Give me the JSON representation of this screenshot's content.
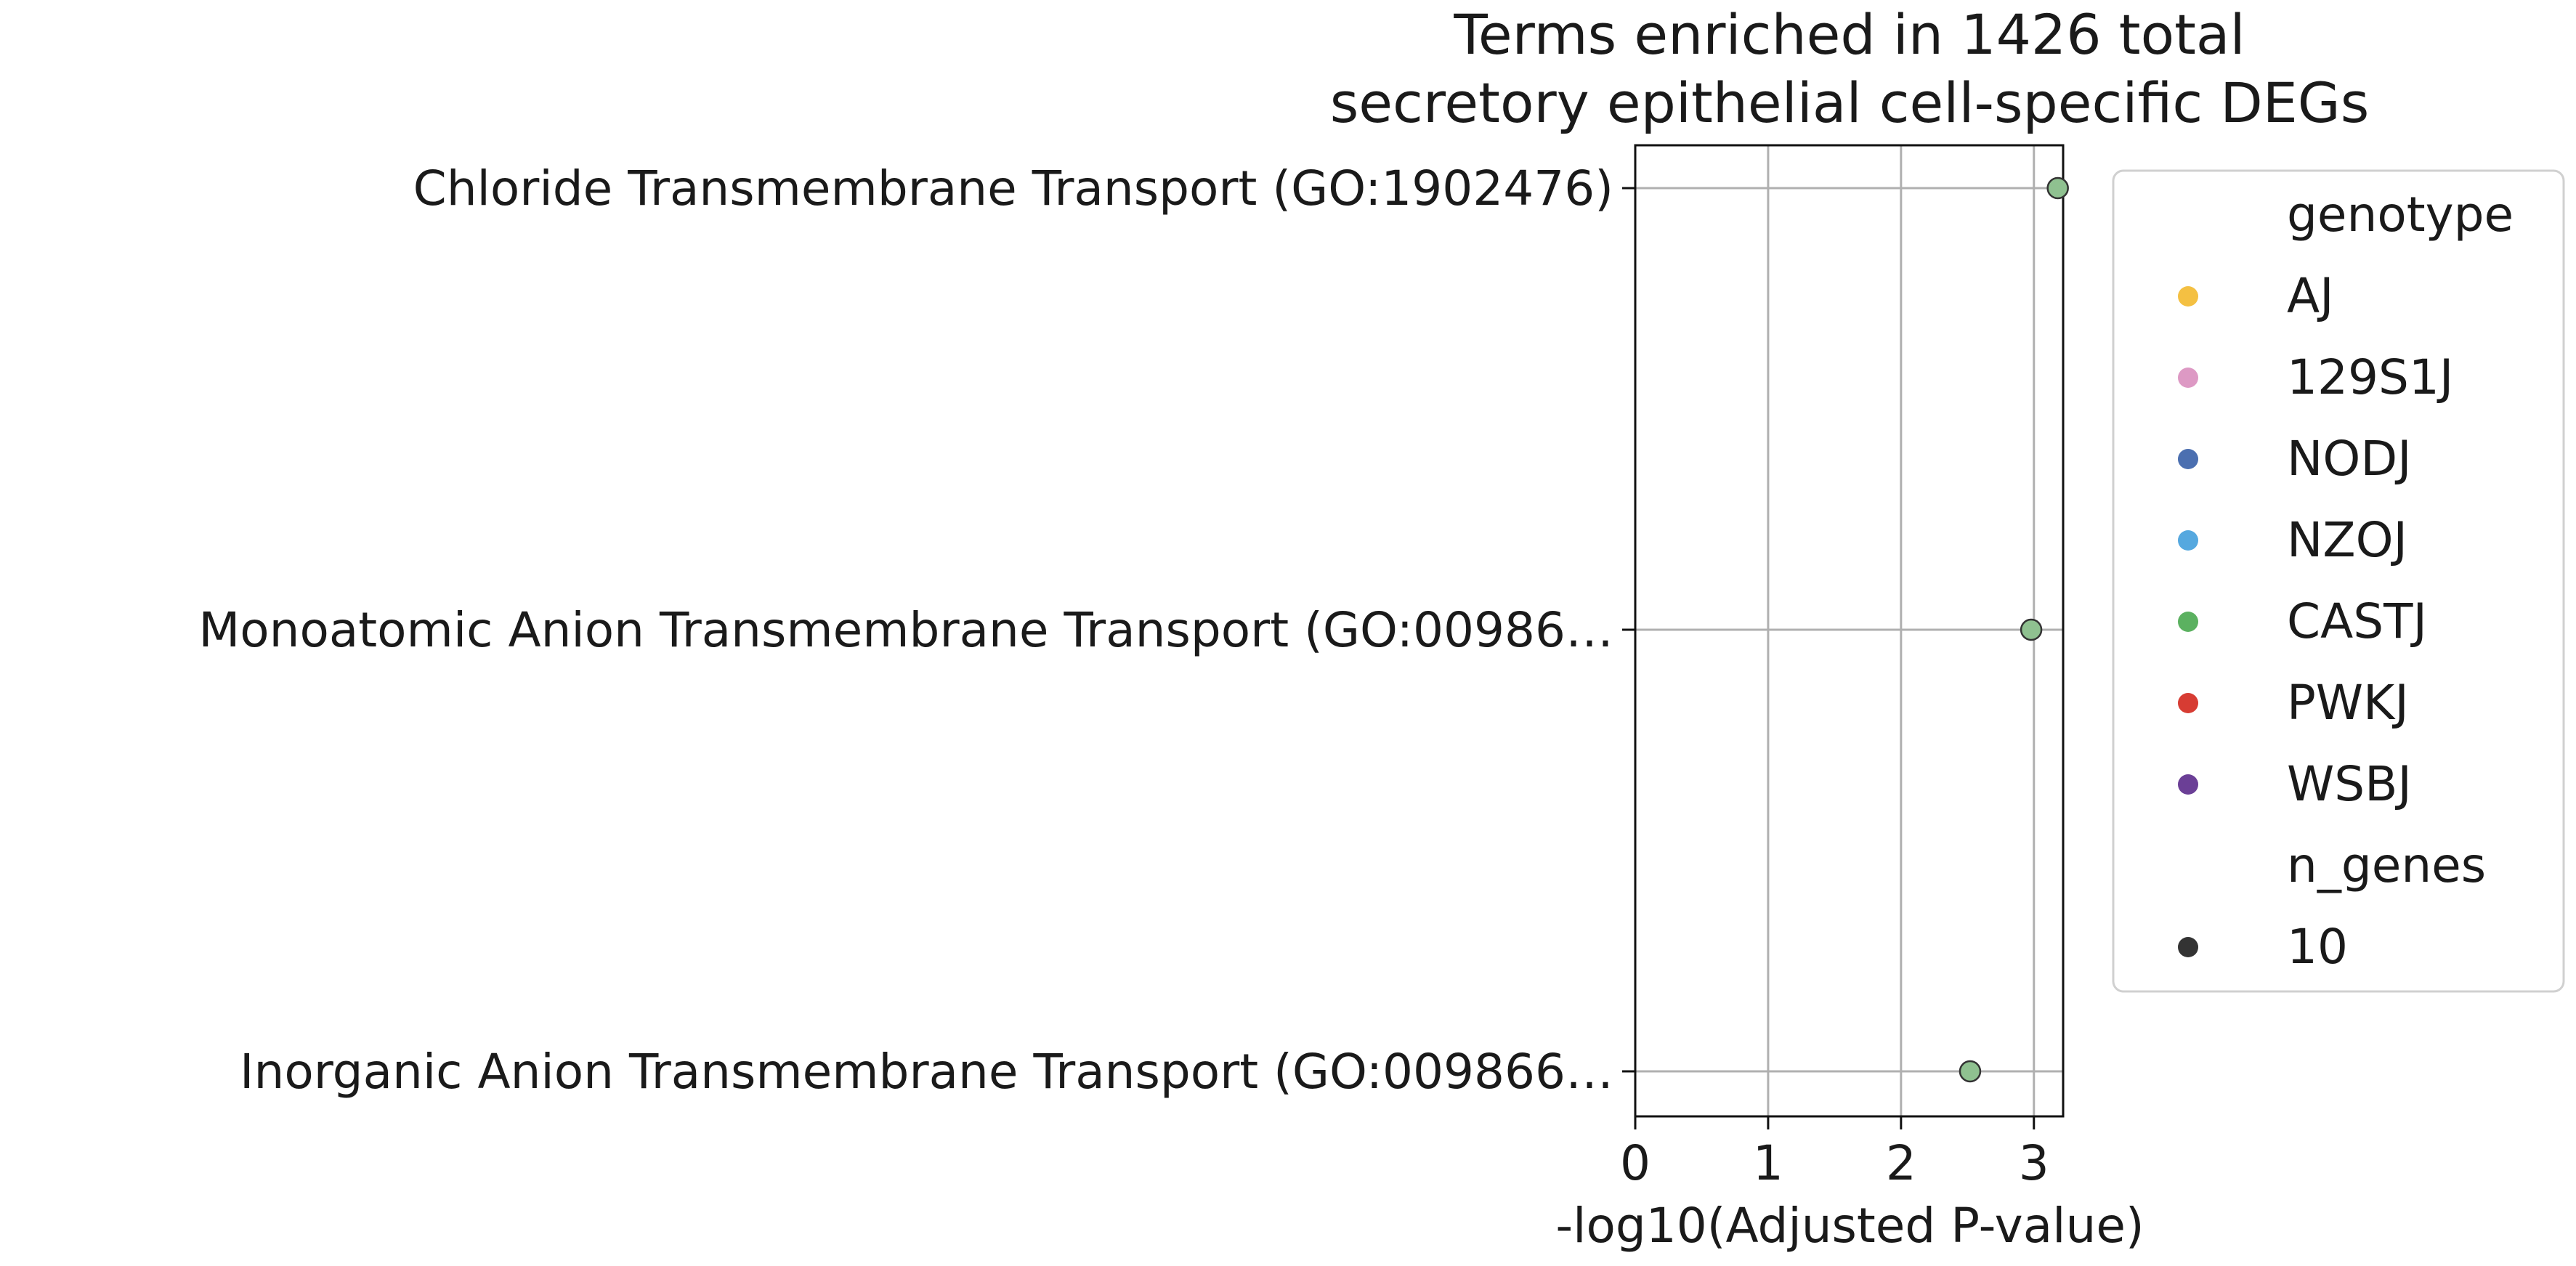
{
  "chart_data": {
    "type": "scatter",
    "title": "Terms enriched in 1426 total\nsecretory epithelial cell-specific DEGs",
    "xlabel": "-log10(Adjusted P-value)",
    "ylabel": "",
    "xlim": [
      0,
      3.22
    ],
    "xticks": [
      "0",
      "1",
      "2",
      "3"
    ],
    "grid": true,
    "categories": [
      "Chloride Transmembrane Transport (GO:1902476)",
      "Monoatomic Anion Transmembrane Transport (GO:00986…",
      "Inorganic Anion Transmembrane Transport (GO:009866…"
    ],
    "series": [
      {
        "name": "CASTJ",
        "values": [
          3.18,
          2.98,
          2.52
        ],
        "n_genes": [
          10,
          10,
          10
        ]
      }
    ],
    "legend": {
      "placement": "right-outside",
      "genotype_title": "genotype",
      "genotypes": [
        {
          "label": "AJ",
          "color": "#f4c042"
        },
        {
          "label": "129S1J",
          "color": "#dd99c4"
        },
        {
          "label": "NODJ",
          "color": "#4b6fb0"
        },
        {
          "label": "NZOJ",
          "color": "#55a8df"
        },
        {
          "label": "CASTJ",
          "color": "#5bb160"
        },
        {
          "label": "PWKJ",
          "color": "#d73c33"
        },
        {
          "label": "WSBJ",
          "color": "#6b3f96"
        }
      ],
      "size_title": "n_genes",
      "sizes": [
        {
          "label": "10",
          "color": "#333333"
        }
      ]
    },
    "marker_fill": "#8fc190",
    "marker_edge": "#333333"
  }
}
